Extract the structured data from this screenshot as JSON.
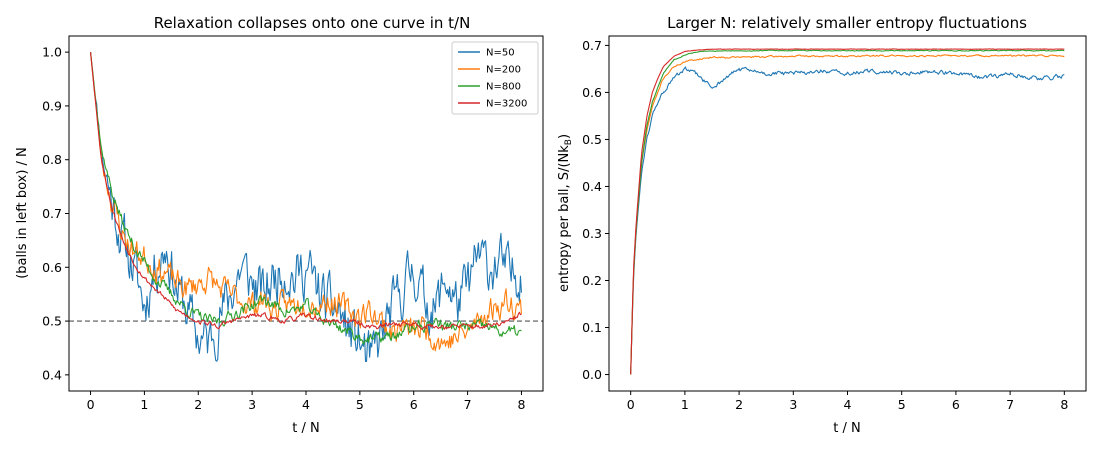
{
  "chart_data": [
    {
      "type": "line",
      "title": "Relaxation collapses onto one curve in t/N",
      "xlabel": "t / N",
      "ylabel": "(balls in left box) / N",
      "xlim": [
        -0.4,
        8.4
      ],
      "ylim": [
        0.37,
        1.03
      ],
      "xticks": [
        0,
        1,
        2,
        3,
        4,
        5,
        6,
        7,
        8
      ],
      "yticks": [
        0.4,
        0.5,
        0.6,
        0.7,
        0.8,
        0.9,
        1.0
      ],
      "ytick_labels": [
        "0.4",
        "0.5",
        "0.6",
        "0.7",
        "0.8",
        "0.9",
        "1.0"
      ],
      "grid": false,
      "legend": "top-right",
      "reference_line": {
        "y": 0.5,
        "style": "dashed",
        "color": "#555555"
      },
      "series": [
        {
          "name": "N=50",
          "color": "#1f77b4",
          "noise": 0.08,
          "seed": 11,
          "x": [
            0,
            0.2,
            0.4,
            0.6,
            0.8,
            1,
            1.2,
            1.4,
            1.6,
            1.8,
            2,
            2.2,
            2.4,
            2.6,
            2.8,
            3,
            3.2,
            3.4,
            3.6,
            3.8,
            4,
            4.2,
            4.4,
            4.6,
            4.8,
            5,
            5.2,
            5.4,
            5.6,
            5.8,
            6,
            6.2,
            6.4,
            6.6,
            6.8,
            7,
            7.2,
            7.4,
            7.6,
            7.8,
            8
          ],
          "y": [
            1.0,
            0.82,
            0.72,
            0.65,
            0.6,
            0.53,
            0.6,
            0.64,
            0.56,
            0.52,
            0.47,
            0.46,
            0.51,
            0.55,
            0.6,
            0.57,
            0.55,
            0.58,
            0.6,
            0.58,
            0.6,
            0.56,
            0.53,
            0.52,
            0.48,
            0.46,
            0.42,
            0.47,
            0.52,
            0.56,
            0.6,
            0.54,
            0.52,
            0.58,
            0.53,
            0.56,
            0.62,
            0.6,
            0.61,
            0.58,
            0.6
          ]
        },
        {
          "name": "N=200",
          "color": "#ff7f0e",
          "noise": 0.04,
          "seed": 23,
          "x": [
            0,
            0.2,
            0.4,
            0.6,
            0.8,
            1,
            1.2,
            1.4,
            1.6,
            1.8,
            2,
            2.2,
            2.4,
            2.6,
            2.8,
            3,
            3.2,
            3.4,
            3.6,
            3.8,
            4,
            4.2,
            4.4,
            4.6,
            4.8,
            5,
            5.2,
            5.4,
            5.6,
            5.8,
            6,
            6.2,
            6.4,
            6.6,
            6.8,
            7,
            7.2,
            7.4,
            7.6,
            7.8,
            8
          ],
          "y": [
            1.0,
            0.8,
            0.72,
            0.66,
            0.63,
            0.62,
            0.6,
            0.59,
            0.57,
            0.56,
            0.57,
            0.58,
            0.56,
            0.55,
            0.54,
            0.53,
            0.54,
            0.52,
            0.53,
            0.53,
            0.54,
            0.53,
            0.54,
            0.53,
            0.52,
            0.51,
            0.52,
            0.5,
            0.48,
            0.49,
            0.48,
            0.49,
            0.47,
            0.46,
            0.47,
            0.48,
            0.5,
            0.52,
            0.53,
            0.54,
            0.52
          ]
        },
        {
          "name": "N=800",
          "color": "#2ca02c",
          "noise": 0.018,
          "seed": 37,
          "x": [
            0,
            0.2,
            0.4,
            0.6,
            0.8,
            1,
            1.2,
            1.4,
            1.6,
            1.8,
            2,
            2.2,
            2.4,
            2.6,
            2.8,
            3,
            3.2,
            3.4,
            3.6,
            3.8,
            4,
            4.2,
            4.4,
            4.6,
            4.8,
            5,
            5.2,
            5.4,
            5.6,
            5.8,
            6,
            6.2,
            6.4,
            6.6,
            6.8,
            7,
            7.2,
            7.4,
            7.6,
            7.8,
            8
          ],
          "y": [
            1.0,
            0.82,
            0.74,
            0.68,
            0.64,
            0.61,
            0.58,
            0.56,
            0.54,
            0.52,
            0.51,
            0.5,
            0.5,
            0.51,
            0.52,
            0.53,
            0.54,
            0.53,
            0.52,
            0.52,
            0.53,
            0.51,
            0.5,
            0.49,
            0.48,
            0.47,
            0.465,
            0.47,
            0.47,
            0.48,
            0.49,
            0.49,
            0.5,
            0.49,
            0.49,
            0.49,
            0.49,
            0.49,
            0.48,
            0.48,
            0.48
          ]
        },
        {
          "name": "N=3200",
          "color": "#d62728",
          "noise": 0.008,
          "seed": 53,
          "x": [
            0,
            0.2,
            0.4,
            0.6,
            0.8,
            1,
            1.2,
            1.4,
            1.6,
            1.8,
            2,
            2.2,
            2.4,
            2.6,
            2.8,
            3,
            3.2,
            3.4,
            3.6,
            3.8,
            4,
            4.2,
            4.4,
            4.6,
            4.8,
            5,
            5.2,
            5.4,
            5.6,
            5.8,
            6,
            6.2,
            6.4,
            6.6,
            6.8,
            7,
            7.2,
            7.4,
            7.6,
            7.8,
            8
          ],
          "y": [
            1.0,
            0.8,
            0.71,
            0.65,
            0.61,
            0.58,
            0.56,
            0.54,
            0.52,
            0.51,
            0.5,
            0.495,
            0.49,
            0.5,
            0.505,
            0.51,
            0.51,
            0.505,
            0.5,
            0.505,
            0.51,
            0.505,
            0.5,
            0.5,
            0.5,
            0.495,
            0.49,
            0.49,
            0.495,
            0.495,
            0.495,
            0.49,
            0.49,
            0.49,
            0.49,
            0.49,
            0.49,
            0.49,
            0.495,
            0.5,
            0.515
          ]
        }
      ]
    },
    {
      "type": "line",
      "title": "Larger N: relatively smaller entropy fluctuations",
      "xlabel": "t / N",
      "ylabel_text": "entropy per ball, S/(Nk",
      "ylabel_sub": "B",
      "ylabel_close": ")",
      "xlim": [
        -0.4,
        8.4
      ],
      "ylim": [
        -0.035,
        0.72
      ],
      "xticks": [
        0,
        1,
        2,
        3,
        4,
        5,
        6,
        7,
        8
      ],
      "yticks": [
        0.0,
        0.1,
        0.2,
        0.3,
        0.4,
        0.5,
        0.6,
        0.7
      ],
      "ytick_labels": [
        "0.0",
        "0.1",
        "0.2",
        "0.3",
        "0.4",
        "0.5",
        "0.6",
        "0.7"
      ],
      "grid": false,
      "series": [
        {
          "name": "N=50",
          "color": "#1f77b4",
          "noise": 0.008,
          "seed": 61,
          "x": [
            0,
            0.05,
            0.1,
            0.2,
            0.3,
            0.4,
            0.5,
            0.6,
            0.8,
            1,
            1.2,
            1.5,
            2,
            2.5,
            3,
            3.5,
            4,
            4.5,
            5,
            5.5,
            6,
            6.5,
            7,
            7.5,
            8
          ],
          "y": [
            0.0,
            0.2,
            0.3,
            0.43,
            0.5,
            0.55,
            0.58,
            0.6,
            0.63,
            0.65,
            0.64,
            0.61,
            0.65,
            0.64,
            0.64,
            0.645,
            0.64,
            0.645,
            0.64,
            0.645,
            0.64,
            0.63,
            0.64,
            0.63,
            0.635
          ]
        },
        {
          "name": "N=200",
          "color": "#ff7f0e",
          "noise": 0.003,
          "seed": 71,
          "x": [
            0,
            0.05,
            0.1,
            0.2,
            0.3,
            0.4,
            0.5,
            0.6,
            0.8,
            1,
            1.2,
            1.5,
            2,
            2.5,
            3,
            3.5,
            4,
            4.5,
            5,
            5.5,
            6,
            6.5,
            7,
            7.5,
            8
          ],
          "y": [
            0.0,
            0.21,
            0.31,
            0.45,
            0.52,
            0.57,
            0.6,
            0.63,
            0.655,
            0.665,
            0.67,
            0.675,
            0.675,
            0.676,
            0.677,
            0.677,
            0.677,
            0.678,
            0.678,
            0.678,
            0.678,
            0.678,
            0.678,
            0.678,
            0.678
          ]
        },
        {
          "name": "N=800",
          "color": "#2ca02c",
          "noise": 0.0015,
          "seed": 83,
          "x": [
            0,
            0.05,
            0.1,
            0.2,
            0.3,
            0.4,
            0.5,
            0.6,
            0.8,
            1,
            1.2,
            1.5,
            2,
            2.5,
            3,
            3.5,
            4,
            4.5,
            5,
            5.5,
            6,
            6.5,
            7,
            7.5,
            8
          ],
          "y": [
            0.0,
            0.21,
            0.31,
            0.45,
            0.53,
            0.58,
            0.61,
            0.64,
            0.67,
            0.68,
            0.686,
            0.688,
            0.688,
            0.689,
            0.689,
            0.689,
            0.689,
            0.689,
            0.689,
            0.689,
            0.689,
            0.689,
            0.689,
            0.689,
            0.689
          ]
        },
        {
          "name": "N=3200",
          "color": "#d62728",
          "noise": 0.0006,
          "seed": 97,
          "x": [
            0,
            0.05,
            0.1,
            0.2,
            0.3,
            0.4,
            0.5,
            0.6,
            0.8,
            1,
            1.2,
            1.5,
            2,
            2.5,
            3,
            3.5,
            4,
            4.5,
            5,
            5.5,
            6,
            6.5,
            7,
            7.5,
            8
          ],
          "y": [
            0.0,
            0.22,
            0.32,
            0.47,
            0.55,
            0.6,
            0.63,
            0.655,
            0.677,
            0.687,
            0.69,
            0.692,
            0.692,
            0.692,
            0.692,
            0.692,
            0.692,
            0.692,
            0.692,
            0.692,
            0.692,
            0.692,
            0.692,
            0.692,
            0.692
          ]
        }
      ]
    }
  ]
}
